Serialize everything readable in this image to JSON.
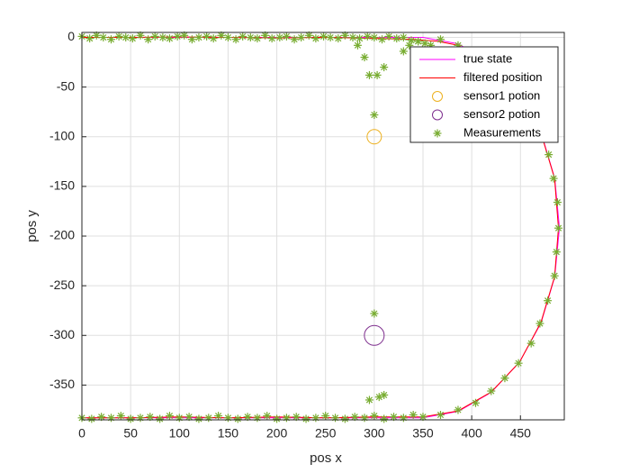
{
  "chart_data": {
    "type": "line",
    "xlabel": "pos x",
    "ylabel": "pos y",
    "xlim": [
      0,
      495
    ],
    "ylim": [
      -385,
      5
    ],
    "xticks": [
      0,
      50,
      100,
      150,
      200,
      250,
      300,
      350,
      400,
      450
    ],
    "yticks": [
      0,
      -50,
      -100,
      -150,
      -200,
      -250,
      -300,
      -350
    ],
    "grid": true,
    "legend": "northeast",
    "series": [
      {
        "name": "true state",
        "color": "#ff00ff",
        "marker": "none",
        "x": [
          0,
          50,
          100,
          150,
          200,
          250,
          300,
          350,
          386.2,
          420,
          449,
          471.2,
          485.2,
          490,
          485.2,
          471.2,
          449,
          420,
          386.2,
          350,
          300,
          250,
          200,
          150,
          100,
          50,
          0
        ],
        "y": [
          0,
          0,
          0,
          0,
          0,
          0,
          0,
          0,
          -6.5,
          -25.7,
          -56.1,
          -95.8,
          -141.9,
          -191.5,
          -241.1,
          -287.3,
          -326.9,
          -357.3,
          -376.5,
          -383,
          -383,
          -383,
          -383,
          -383,
          -383,
          -383,
          -383
        ]
      },
      {
        "name": "filtered position",
        "color": "#ff0000",
        "marker": "none",
        "x": [
          0,
          50,
          100,
          150,
          200,
          250,
          300,
          340,
          365,
          386,
          420,
          449,
          471,
          485,
          489,
          485,
          471,
          449,
          420,
          386,
          350,
          300,
          250,
          200,
          150,
          100,
          50,
          0
        ],
        "y": [
          0,
          0,
          0.5,
          0,
          -0.5,
          0,
          -1,
          -2,
          -4,
          -8,
          -26,
          -56,
          -96,
          -142,
          -192,
          -241,
          -287,
          -327,
          -357,
          -376,
          -382,
          -382,
          -383,
          -382,
          -383,
          -382,
          -383,
          -383
        ]
      },
      {
        "name": "sensor1 potion",
        "color": "#edb120",
        "marker": "o",
        "marker_size": 8,
        "x": [
          300
        ],
        "y": [
          -100
        ]
      },
      {
        "name": "sensor2 potion",
        "color": "#7e2f8e",
        "marker": "o",
        "marker_size": 11,
        "x": [
          300
        ],
        "y": [
          -300
        ]
      },
      {
        "name": "Measurements",
        "color": "#77ac30",
        "marker": "*",
        "x": [
          0,
          8,
          15,
          22,
          30,
          38,
          45,
          52,
          60,
          68,
          75,
          83,
          90,
          98,
          105,
          113,
          120,
          128,
          135,
          143,
          150,
          158,
          165,
          173,
          180,
          188,
          195,
          203,
          210,
          218,
          225,
          233,
          240,
          248,
          255,
          263,
          270,
          278,
          285,
          293,
          300,
          308,
          315,
          323,
          330,
          338,
          345,
          352,
          358,
          283,
          290,
          295,
          303,
          310,
          300,
          300,
          330,
          336,
          345,
          368,
          386,
          403,
          420,
          435,
          449,
          461,
          470,
          479,
          484,
          488,
          489,
          487,
          485,
          478,
          470,
          461,
          448,
          434,
          420,
          404,
          386,
          368,
          350,
          340,
          330,
          320,
          310,
          300,
          290,
          280,
          270,
          260,
          250,
          240,
          230,
          220,
          210,
          200,
          190,
          180,
          170,
          160,
          150,
          140,
          130,
          120,
          110,
          100,
          90,
          80,
          70,
          60,
          50,
          40,
          30,
          20,
          10,
          0,
          295,
          305,
          310
        ],
        "y": [
          1,
          -1,
          2,
          0,
          -2,
          1,
          0,
          -1,
          2,
          -2,
          1,
          0,
          -1,
          1,
          2,
          -2,
          0,
          1,
          -1,
          2,
          0,
          -2,
          1,
          0,
          -1,
          2,
          -1,
          0,
          1,
          -2,
          0,
          2,
          -1,
          1,
          0,
          -1,
          2,
          0,
          -1,
          1,
          0,
          -2,
          1,
          -1,
          0,
          -3,
          -4,
          -6,
          -8,
          -8,
          -20,
          -38,
          -38,
          -30,
          -78,
          -278,
          -14,
          -8,
          -4,
          -2,
          -8,
          -14,
          -27,
          -40,
          -58,
          -75,
          -97,
          -118,
          -142,
          -166,
          -192,
          -216,
          -240,
          -265,
          -288,
          -308,
          -328,
          -343,
          -356,
          -368,
          -375,
          -380,
          -382,
          -380,
          -383,
          -382,
          -384,
          -381,
          -383,
          -382,
          -384,
          -383,
          -381,
          -383,
          -384,
          -382,
          -383,
          -384,
          -381,
          -383,
          -382,
          -384,
          -383,
          -381,
          -383,
          -384,
          -382,
          -383,
          -381,
          -384,
          -382,
          -383,
          -384,
          -381,
          -383,
          -382,
          -384,
          -383,
          -365,
          -362,
          -360
        ]
      }
    ]
  }
}
